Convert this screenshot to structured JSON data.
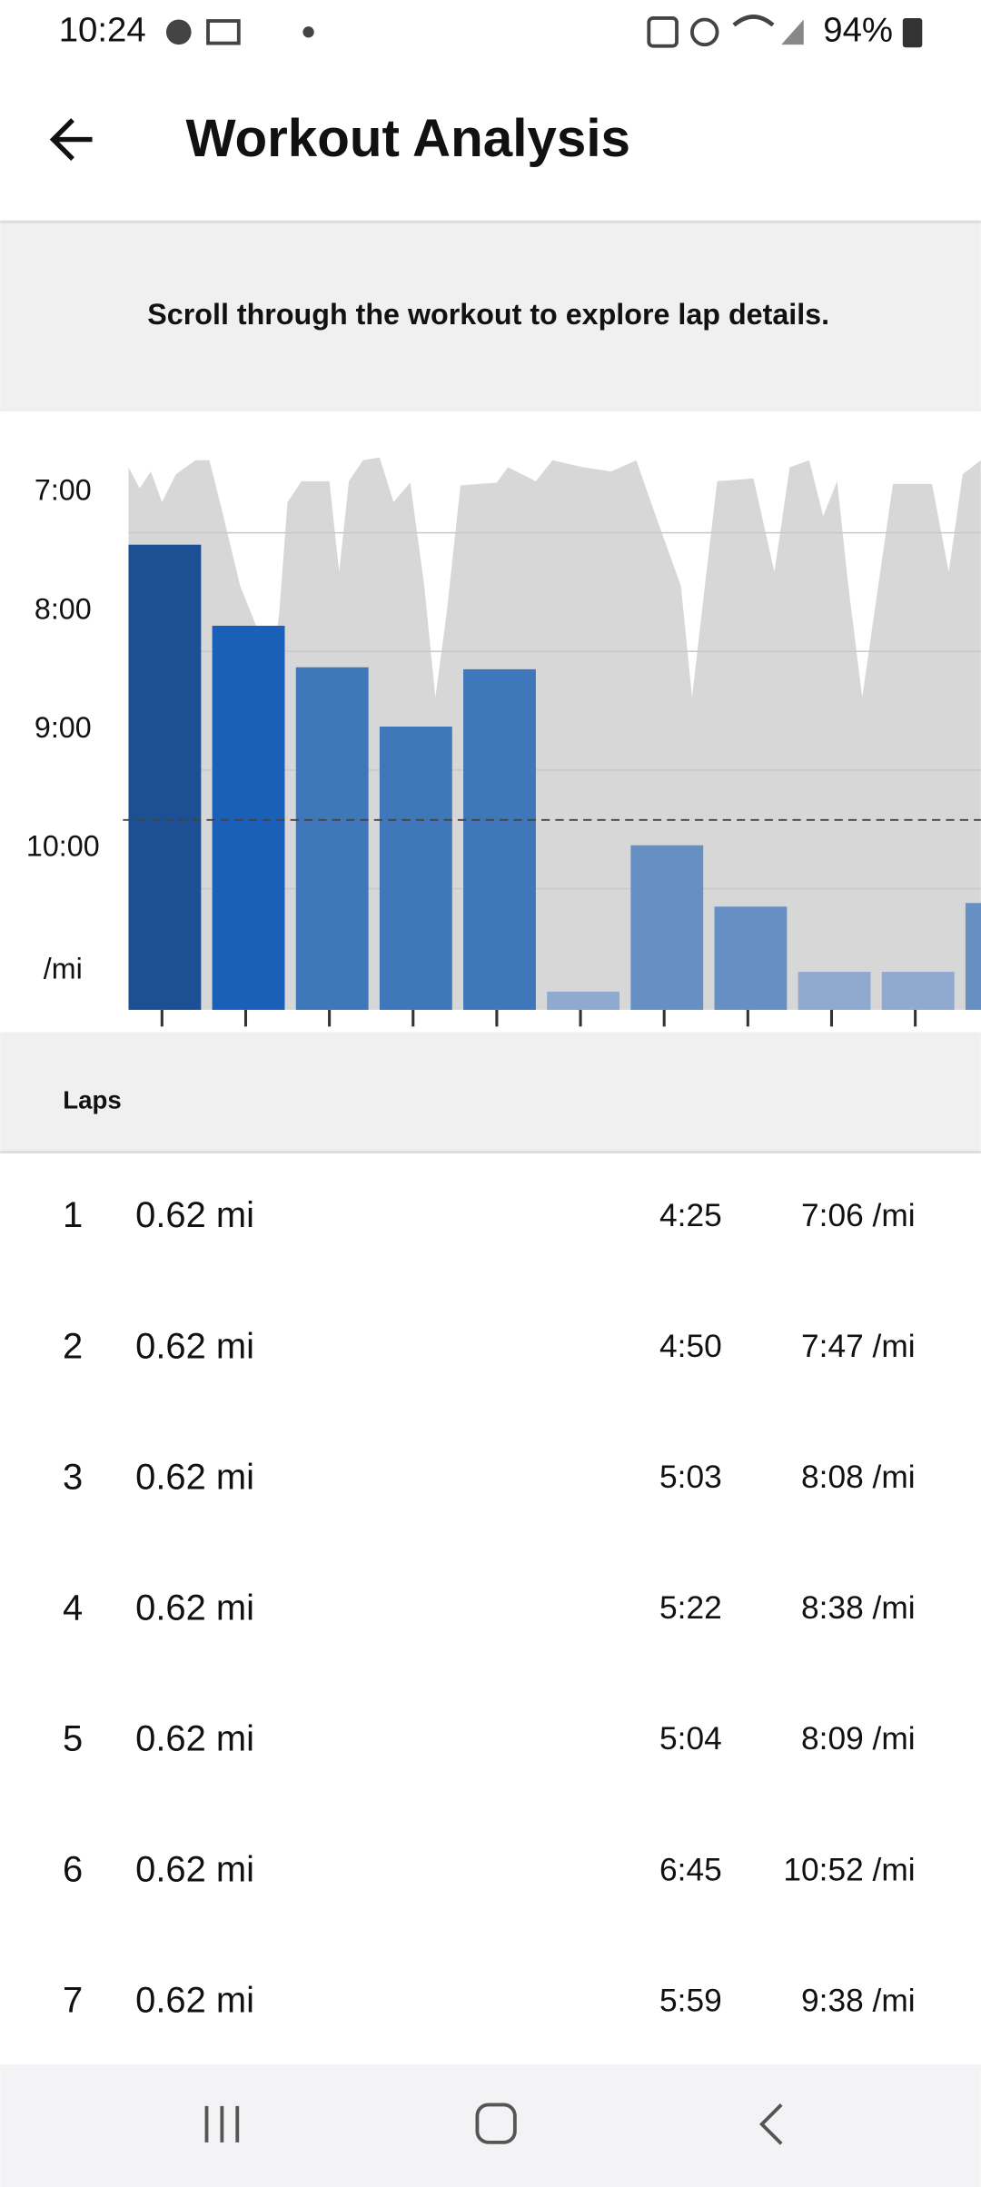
{
  "status_bar": {
    "time": "10:24",
    "battery": "94%"
  },
  "header": {
    "title": "Workout Analysis"
  },
  "banner": {
    "text": "Scroll through the workout to explore lap details."
  },
  "chart_data": {
    "type": "bar",
    "ylabel": "/mi",
    "values": [
      7.1,
      7.7833,
      8.1333,
      8.6333,
      8.15,
      10.8667,
      9.6333,
      10.15,
      10.7,
      10.7,
      10.12
    ],
    "colors": [
      "#1c4f93",
      "#1a5fb8",
      "#3f77bb",
      "#3f77bb",
      "#3f77bb",
      "#8fa9cf",
      "#6690c4",
      "#6690c4",
      "#8fa9cf",
      "#8fa9cf",
      "#6690c4"
    ],
    "ylim": [
      6.33,
      11.02
    ],
    "y_inverted": true,
    "yticks": [
      {
        "value": 7,
        "label": "7:00"
      },
      {
        "value": 8,
        "label": "8:00"
      },
      {
        "value": 9,
        "label": "9:00"
      },
      {
        "value": 10,
        "label": "10:00"
      }
    ],
    "grid": true,
    "reference_line": 9.42
  },
  "laps": {
    "title": "Laps",
    "rows": [
      [
        "1",
        "0.62 mi",
        "4:25",
        "7:06 /mi"
      ],
      [
        "2",
        "0.62 mi",
        "4:50",
        "7:47 /mi"
      ],
      [
        "3",
        "0.62 mi",
        "5:03",
        "8:08 /mi"
      ],
      [
        "4",
        "0.62 mi",
        "5:22",
        "8:38 /mi"
      ],
      [
        "5",
        "0.62 mi",
        "5:04",
        "8:09 /mi"
      ],
      [
        "6",
        "0.62 mi",
        "6:45",
        "10:52 /mi"
      ],
      [
        "7",
        "0.62 mi",
        "5:59",
        "9:38 /mi"
      ]
    ]
  }
}
